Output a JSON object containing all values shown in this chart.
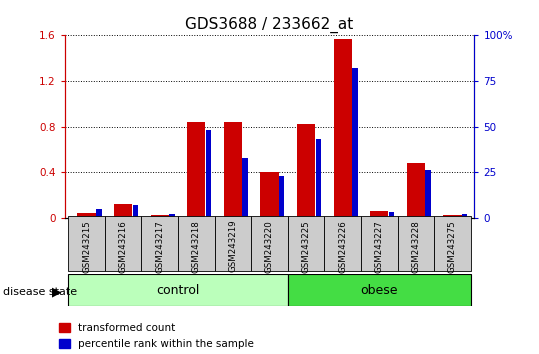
{
  "title": "GDS3688 / 233662_at",
  "samples": [
    "GSM243215",
    "GSM243216",
    "GSM243217",
    "GSM243218",
    "GSM243219",
    "GSM243220",
    "GSM243225",
    "GSM243226",
    "GSM243227",
    "GSM243228",
    "GSM243275"
  ],
  "transformed_count": [
    0.04,
    0.12,
    0.02,
    0.84,
    0.84,
    0.4,
    0.82,
    1.57,
    0.06,
    0.48,
    0.02
  ],
  "percentile_rank_pct": [
    5,
    7,
    2,
    48,
    33,
    23,
    43,
    82,
    3,
    26,
    2
  ],
  "groups": [
    {
      "label": "control",
      "start": 0,
      "end": 6,
      "color": "#bbffbb"
    },
    {
      "label": "obese",
      "start": 6,
      "end": 11,
      "color": "#44dd44"
    }
  ],
  "ylim_left": [
    0,
    1.6
  ],
  "ylim_right": [
    0,
    100
  ],
  "yticks_left": [
    0,
    0.4,
    0.8,
    1.2,
    1.6
  ],
  "yticks_right": [
    0,
    25,
    50,
    75,
    100
  ],
  "bar_color_red": "#cc0000",
  "bar_color_blue": "#0000cc",
  "red_bar_width": 0.5,
  "blue_bar_width": 0.15,
  "title_fontsize": 11,
  "tick_fontsize": 7.5,
  "legend_label_red": "transformed count",
  "legend_label_blue": "percentile rank within the sample",
  "disease_state_label": "disease state",
  "sample_label_bg": "#cccccc"
}
